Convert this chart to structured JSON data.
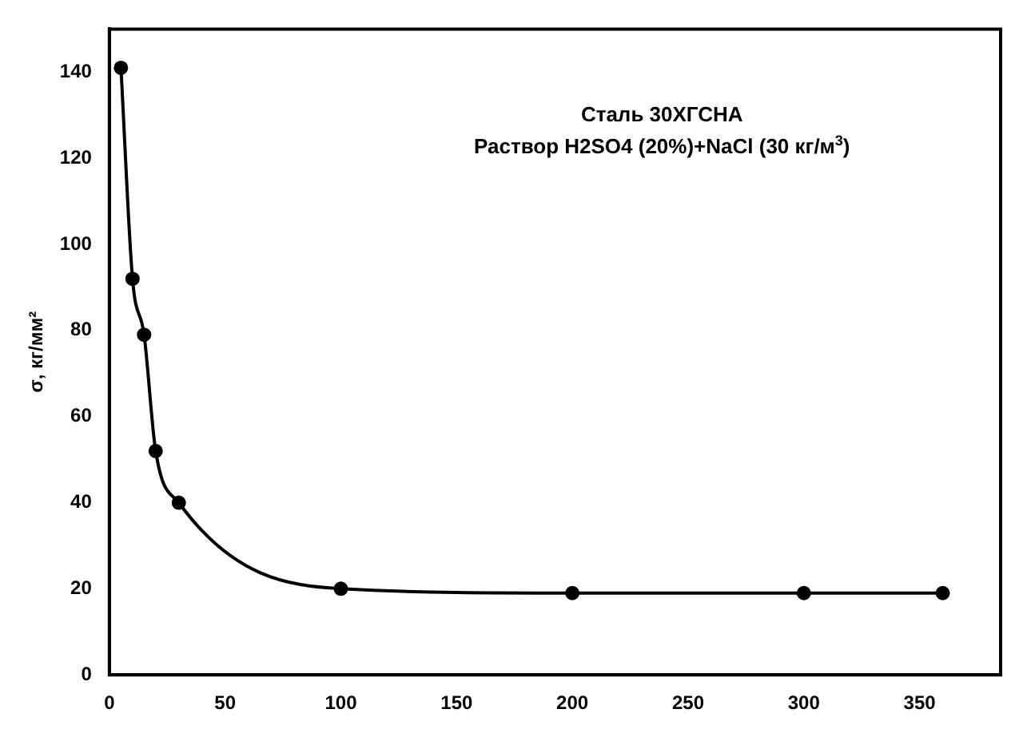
{
  "chart_data": {
    "type": "line",
    "title": "Сталь 30ХГСНА",
    "subtitle": "Раствор H2SO4 (20%)+NaCl (30 кг/м$^{3}$)",
    "ylabel": "σ, кг/мм²",
    "x": [
      5,
      10,
      15,
      20,
      30,
      100,
      200,
      300,
      360
    ],
    "series": [
      {
        "color": "#000000",
        "values": [
          141,
          92,
          79,
          52,
          40,
          20,
          19,
          19,
          19
        ]
      }
    ],
    "xlim": [
      0,
      385
    ],
    "xticks": [
      0,
      50,
      100,
      150,
      200,
      250,
      300,
      350
    ],
    "ylim": [
      0,
      150
    ],
    "yticks": [
      0,
      20,
      40,
      60,
      80,
      100,
      120,
      140
    ],
    "grid": false,
    "legend": false,
    "marker": "circle",
    "line_style": "solid"
  }
}
